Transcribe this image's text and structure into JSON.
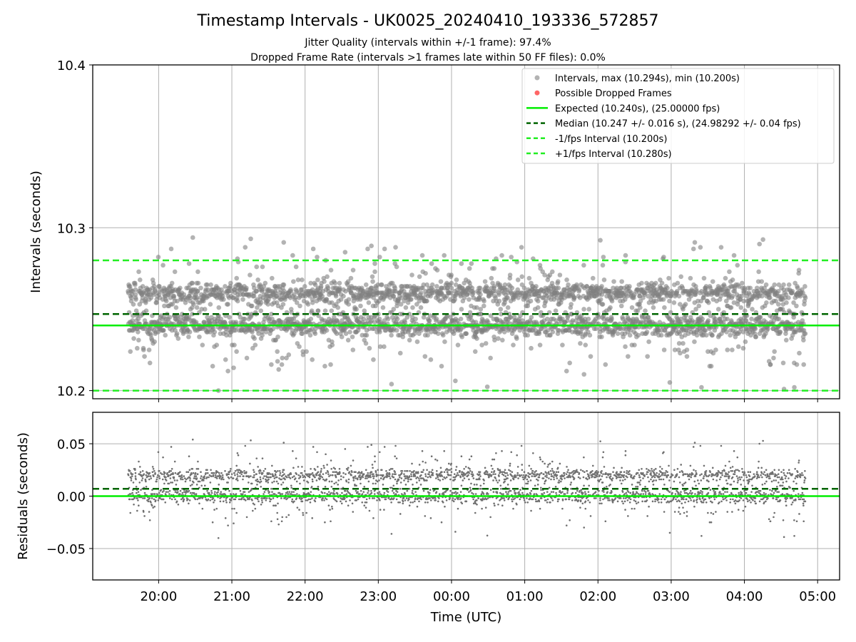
{
  "title": "Timestamp Intervals - UK0025_20240410_193336_572857",
  "subtitle_1": "Jitter Quality (intervals within +/-1 frame): 97.4%",
  "subtitle_2": "Dropped Frame Rate (intervals >1 frames late within 50 FF files): 0.0%",
  "colors": {
    "points": "#808080",
    "dropped": "#ff0000",
    "expected": "#00ee00",
    "median": "#006400",
    "fps_bounds": "#22ee22",
    "grid": "#b0b0b0"
  },
  "chart_data": [
    {
      "type": "scatter",
      "panel": "intervals",
      "ylabel": "Intervals (seconds)",
      "ylim": [
        10.195,
        10.4
      ],
      "yticks": [
        10.2,
        10.3,
        10.4
      ],
      "ytick_labels": [
        "10.2",
        "10.3",
        "10.4"
      ],
      "xlim": [
        "19:06",
        "05:18"
      ],
      "grid": true,
      "legend_position": "top-right",
      "legend": [
        "Intervals, max (10.294s), min (10.200s)",
        "Possible Dropped Frames",
        "Expected (10.240s), (25.00000 fps)",
        "Median (10.247 +/- 0.016 s), (24.98292 +/- 0.04 fps)",
        "-1/fps Interval (10.200s)",
        "+1/fps Interval (10.280s)"
      ],
      "reference_lines": {
        "expected": 10.24,
        "median": 10.247,
        "minus_1_fps": 10.2,
        "plus_1_fps": 10.28
      },
      "series_summary": {
        "x_start": "19:35",
        "x_end": "04:50",
        "max": 10.294,
        "min": 10.2,
        "median": 10.247,
        "std": 0.016
      },
      "dropped_frames_count": 0
    },
    {
      "type": "scatter",
      "panel": "residuals",
      "ylabel": "Residuals (seconds)",
      "xlabel": "Time (UTC)",
      "ylim": [
        -0.08,
        0.08
      ],
      "yticks": [
        -0.05,
        0.0,
        0.05
      ],
      "ytick_labels": [
        "−0.05",
        "0.00",
        "0.05"
      ],
      "xticks": [
        "20:00",
        "21:00",
        "22:00",
        "23:00",
        "00:00",
        "01:00",
        "02:00",
        "03:00",
        "04:00",
        "05:00"
      ],
      "grid": true,
      "reference_lines": {
        "zero": 0.0,
        "median_residual": 0.007
      },
      "series_summary": {
        "max": 0.054,
        "min": -0.04
      }
    }
  ]
}
